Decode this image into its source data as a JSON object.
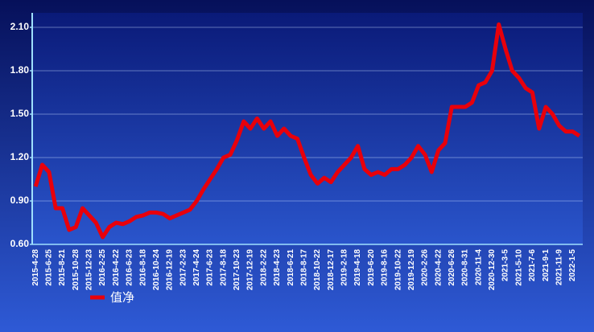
{
  "chart_data": {
    "type": "line",
    "categories": [
      "2015-4-28",
      null,
      "2015-6-25",
      null,
      "2015-8-21",
      null,
      "2015-10-28",
      null,
      "2015-12-23",
      null,
      "2016-2-25",
      null,
      "2016-4-22",
      null,
      "2016-6-23",
      null,
      "2016-8-18",
      null,
      "2016-10-24",
      null,
      "2016-12-19",
      null,
      "2017-2-23",
      null,
      "2017-4-24",
      null,
      "2017-6-23",
      null,
      "2017-8-18",
      null,
      "2017-10-23",
      null,
      "2017-12-19",
      null,
      "2018-2-22",
      null,
      "2018-4-23",
      null,
      "2018-6-21",
      null,
      "2018-8-17",
      null,
      "2018-10-22",
      null,
      "2018-12-17",
      null,
      "2019-2-18",
      null,
      "2019-4-18",
      null,
      "2019-6-20",
      null,
      "2019-8-16",
      null,
      "2019-10-22",
      null,
      "2019-12-19",
      null,
      "2020-2-26",
      null,
      "2020-4-22",
      null,
      "2020-6-26",
      null,
      "2020-8-31",
      null,
      "2020-11-4",
      null,
      "2020-12-30",
      null,
      "2021-3-5",
      null,
      "2021-5-10",
      null,
      "2021-7-6",
      null,
      "2021-9-1",
      null,
      "2021-11-9",
      null,
      "2022-1-5",
      null
    ],
    "series": [
      {
        "name": "值净",
        "color": "#e8000b",
        "values": [
          1.0,
          1.15,
          1.1,
          0.85,
          0.85,
          0.7,
          0.72,
          0.85,
          0.8,
          0.75,
          0.65,
          0.72,
          0.75,
          0.74,
          0.76,
          0.79,
          0.8,
          0.82,
          0.82,
          0.81,
          0.78,
          0.8,
          0.82,
          0.84,
          0.9,
          0.98,
          1.05,
          1.12,
          1.2,
          1.22,
          1.32,
          1.45,
          1.4,
          1.47,
          1.4,
          1.45,
          1.35,
          1.4,
          1.35,
          1.33,
          1.2,
          1.08,
          1.02,
          1.06,
          1.03,
          1.1,
          1.15,
          1.2,
          1.28,
          1.12,
          1.08,
          1.1,
          1.08,
          1.12,
          1.12,
          1.15,
          1.2,
          1.28,
          1.22,
          1.1,
          1.25,
          1.3,
          1.55,
          1.55,
          1.55,
          1.58,
          1.7,
          1.72,
          1.8,
          2.12,
          1.95,
          1.8,
          1.75,
          1.68,
          1.65,
          1.4,
          1.55,
          1.5,
          1.42,
          1.38,
          1.38,
          1.35
        ]
      }
    ],
    "ylim": [
      0.6,
      2.2
    ],
    "yticks": [
      {
        "value": 0.6,
        "label": "0.60"
      },
      {
        "value": 0.9,
        "label": "0.90"
      },
      {
        "value": 1.2,
        "label": "1.20"
      },
      {
        "value": 1.5,
        "label": "1.50"
      },
      {
        "value": 1.8,
        "label": "1.80"
      },
      {
        "value": 2.1,
        "label": "2.10"
      }
    ],
    "grid": true
  }
}
